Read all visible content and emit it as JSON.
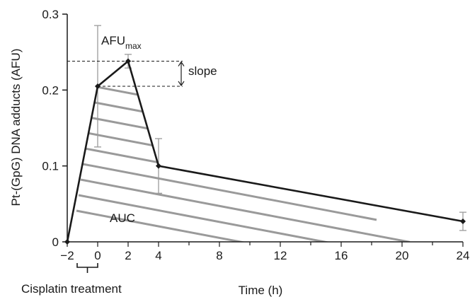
{
  "chart_data": {
    "type": "line",
    "title": "",
    "xlabel": "Time (h)",
    "ylabel": "Pt-(GpG) DNA adducts (AFU)",
    "xlim": [
      -2,
      24
    ],
    "ylim": [
      0,
      0.3
    ],
    "x_ticks": [
      -2,
      0,
      2,
      4,
      8,
      12,
      16,
      20,
      24
    ],
    "x_tick_labels": [
      "−2",
      "0",
      "2",
      "4",
      "8",
      "12",
      "16",
      "20",
      "24"
    ],
    "y_ticks": [
      0,
      0.1,
      0.2,
      0.3
    ],
    "y_tick_labels": [
      "0",
      "0.1",
      "0.2",
      "0.3"
    ],
    "grid": false,
    "series": [
      {
        "x": [
          -2,
          0,
          2,
          4,
          24
        ],
        "y": [
          0,
          0.205,
          0.238,
          0.1,
          0.027
        ],
        "error": [
          null,
          0.08,
          0.009,
          0.036,
          0.012
        ]
      }
    ],
    "annotations": {
      "afu_max_label": "AFU",
      "afu_max_subscript": "max",
      "slope_label": "slope",
      "auc_label": "AUC",
      "treatment_label": "Cisplatin treatment"
    },
    "colors": {
      "line": "#1a1a1a",
      "axes": "#1a1a1a",
      "error_bars": "#9a9a9a",
      "hatch": "#9a9a9a"
    }
  }
}
